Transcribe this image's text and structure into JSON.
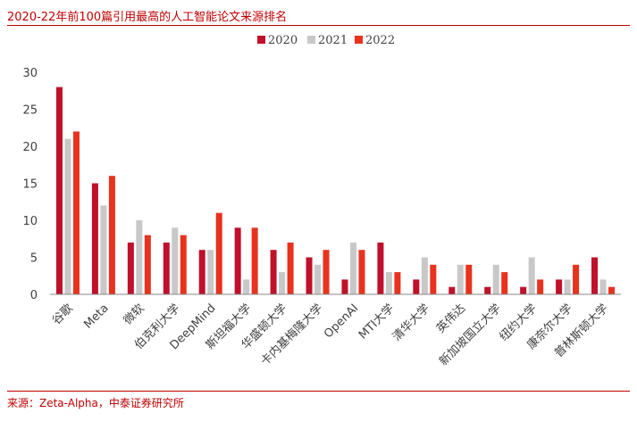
{
  "title": "2020-22年前100篇引用最高的人工智能论文来源排名",
  "source": "来源：Zeta-Alpha，中泰证券研究所",
  "chart_data": {
    "type": "bar",
    "categories": [
      "谷歌",
      "Meta",
      "微软",
      "伯克利大学",
      "DeepMind",
      "斯坦福大学",
      "华盛顿大学",
      "卡内基梅隆大学",
      "OpenAI",
      "MTI大学",
      "清华大学",
      "英伟达",
      "新加坡国立大学",
      "纽约大学",
      "康奈尔大学",
      "普林斯顿大学"
    ],
    "series": [
      {
        "name": "2020",
        "color": "#c0102a",
        "values": [
          28,
          15,
          7,
          7,
          6,
          9,
          6,
          5,
          2,
          7,
          2,
          1,
          1,
          1,
          2,
          5
        ]
      },
      {
        "name": "2021",
        "color": "#c8c8c8",
        "values": [
          21,
          12,
          10,
          9,
          6,
          2,
          3,
          4,
          7,
          3,
          5,
          4,
          4,
          5,
          2,
          2
        ]
      },
      {
        "name": "2022",
        "color": "#e8321e",
        "values": [
          22,
          16,
          8,
          8,
          11,
          9,
          7,
          6,
          6,
          3,
          4,
          4,
          3,
          2,
          4,
          1
        ]
      }
    ],
    "yticks": [
      "0",
      "5",
      "10",
      "15",
      "20",
      "25",
      "30"
    ],
    "ylim": [
      0,
      30
    ],
    "legend_position": "top-center",
    "grid": false
  }
}
